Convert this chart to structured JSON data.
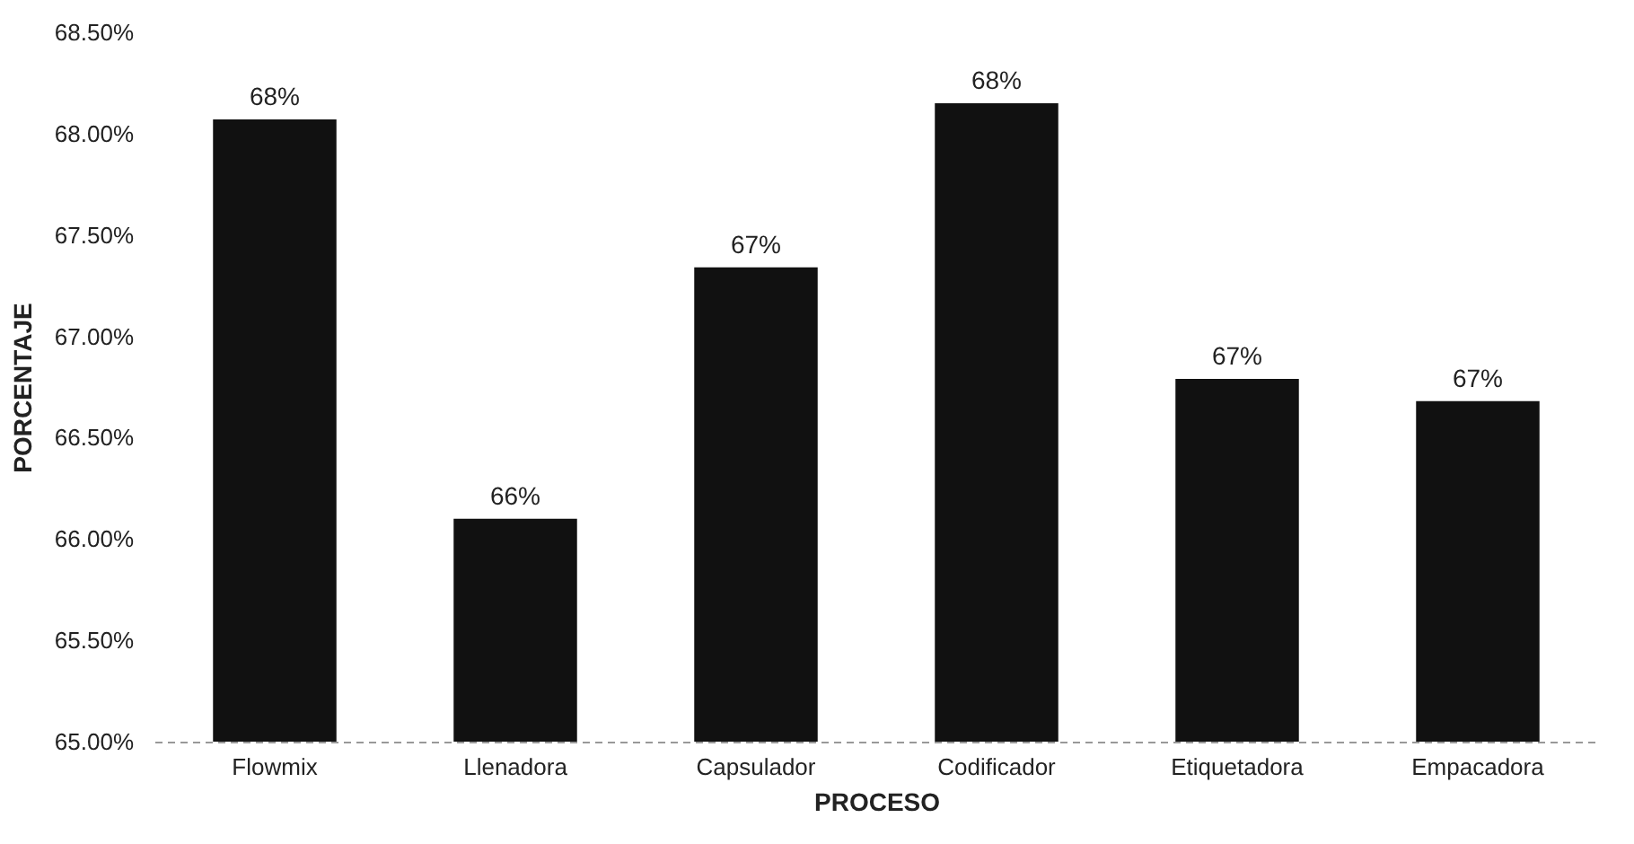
{
  "chart_data": {
    "type": "bar",
    "xlabel": "PROCESO",
    "ylabel": "PORCENTAJE",
    "categories": [
      "Flowmix",
      "Llenadora",
      "Capsulador",
      "Codificador",
      "Etiquetadora",
      "Empacadora"
    ],
    "values": [
      68.07,
      66.1,
      67.34,
      68.15,
      66.79,
      66.68
    ],
    "value_labels": [
      "68%",
      "66%",
      "67%",
      "68%",
      "67%",
      "67%"
    ],
    "color": "#111111",
    "ylim": [
      65,
      68.5
    ],
    "yticks": [
      {
        "value": 65,
        "label": "65.00%"
      },
      {
        "value": 65.5,
        "label": "65.50%"
      },
      {
        "value": 66,
        "label": "66.00%"
      },
      {
        "value": 66.5,
        "label": "66.50%"
      },
      {
        "value": 67,
        "label": "67.00%"
      },
      {
        "value": 67.5,
        "label": "67.50%"
      },
      {
        "value": 68,
        "label": "68.00%"
      },
      {
        "value": 68.5,
        "label": "68.50%"
      }
    ],
    "grid": false
  }
}
